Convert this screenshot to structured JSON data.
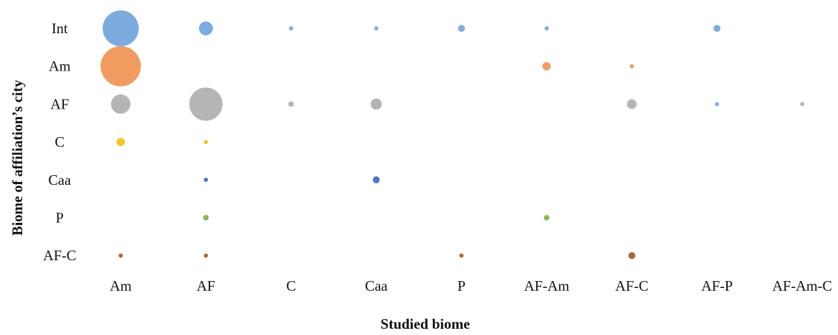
{
  "chart_data": {
    "type": "scatter",
    "subtype": "bubble",
    "xlabel": "Studied biome",
    "ylabel": "Biome of affiliation’s city",
    "x_categories": [
      "Am",
      "AF",
      "C",
      "Caa",
      "P",
      "AF-Am",
      "AF-C",
      "AF-P",
      "AF-Am-C"
    ],
    "y_categories": [
      "Int",
      "Am",
      "AF",
      "C",
      "Caa",
      "P",
      "AF-C"
    ],
    "grid": false,
    "legend": "none",
    "colors": {
      "blue": "#7cabe0",
      "orange": "#f29b60",
      "gray": "#b5b5b5",
      "yellow": "#f7c626",
      "darkblue": "#4f76c8",
      "green": "#82bb55",
      "brown": "#a8693a"
    },
    "points": [
      {
        "x": "Am",
        "y": "Int",
        "size": 26,
        "color": "blue"
      },
      {
        "x": "AF",
        "y": "Int",
        "size": 10,
        "color": "blue"
      },
      {
        "x": "C",
        "y": "Int",
        "size": 3,
        "color": "blue"
      },
      {
        "x": "Caa",
        "y": "Int",
        "size": 3,
        "color": "blue"
      },
      {
        "x": "P",
        "y": "Int",
        "size": 5,
        "color": "blue"
      },
      {
        "x": "AF-Am",
        "y": "Int",
        "size": 3,
        "color": "blue"
      },
      {
        "x": "AF-P",
        "y": "Int",
        "size": 5,
        "color": "blue"
      },
      {
        "x": "Am",
        "y": "Am",
        "size": 29,
        "color": "orange"
      },
      {
        "x": "AF-Am",
        "y": "Am",
        "size": 6,
        "color": "orange"
      },
      {
        "x": "AF-C",
        "y": "Am",
        "size": 3,
        "color": "orange"
      },
      {
        "x": "Am",
        "y": "AF",
        "size": 14,
        "color": "gray"
      },
      {
        "x": "AF",
        "y": "AF",
        "size": 24,
        "color": "gray"
      },
      {
        "x": "C",
        "y": "AF",
        "size": 4,
        "color": "gray"
      },
      {
        "x": "Caa",
        "y": "AF",
        "size": 8,
        "color": "gray"
      },
      {
        "x": "AF-C",
        "y": "AF",
        "size": 7,
        "color": "gray"
      },
      {
        "x": "AF-P",
        "y": "AF",
        "size": 3,
        "color": "blue"
      },
      {
        "x": "AF-Am-C",
        "y": "AF",
        "size": 3,
        "color": "gray"
      },
      {
        "x": "Am",
        "y": "C",
        "size": 6,
        "color": "yellow"
      },
      {
        "x": "AF",
        "y": "C",
        "size": 3,
        "color": "yellow"
      },
      {
        "x": "AF",
        "y": "Caa",
        "size": 3,
        "color": "darkblue"
      },
      {
        "x": "Caa",
        "y": "Caa",
        "size": 5,
        "color": "darkblue"
      },
      {
        "x": "AF",
        "y": "P",
        "size": 4,
        "color": "green"
      },
      {
        "x": "AF-Am",
        "y": "P",
        "size": 4,
        "color": "green"
      },
      {
        "x": "Am",
        "y": "AF-C",
        "size": 3,
        "color": "brown"
      },
      {
        "x": "AF",
        "y": "AF-C",
        "size": 3,
        "color": "brown"
      },
      {
        "x": "P",
        "y": "AF-C",
        "size": 3,
        "color": "brown"
      },
      {
        "x": "AF-C",
        "y": "AF-C",
        "size": 5,
        "color": "brown"
      }
    ]
  }
}
